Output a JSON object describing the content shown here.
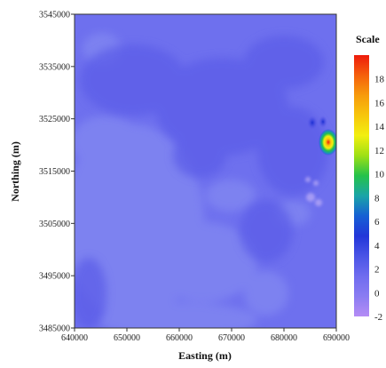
{
  "chart_data": {
    "type": "heatmap",
    "xlabel": "Easting (m)",
    "ylabel": "Northing (m)",
    "xlim": [
      640000,
      690000
    ],
    "ylim": [
      3485000,
      3545000
    ],
    "x_ticks": [
      640000,
      650000,
      660000,
      670000,
      680000,
      690000
    ],
    "y_ticks": [
      3485000,
      3495000,
      3505000,
      3515000,
      3525000,
      3535000,
      3545000
    ],
    "x_tick_labels": [
      "640000",
      "650000",
      "660000",
      "670000",
      "680000",
      "690000"
    ],
    "y_tick_labels": [
      "3485000",
      "3495000",
      "3505000",
      "3515000",
      "3525000",
      "3535000",
      "3545000"
    ],
    "colorbar": {
      "title": "Scale",
      "min": -2,
      "max": 20,
      "ticks": [
        -2,
        0,
        2,
        4,
        6,
        8,
        10,
        12,
        14,
        16,
        18
      ],
      "tick_labels": [
        "-2",
        "0",
        "2",
        "4",
        "6",
        "8",
        "10",
        "12",
        "14",
        "16",
        "18"
      ],
      "colors": [
        "#b58cf5",
        "#8a7cf2",
        "#6f6cef",
        "#4a54e6",
        "#2236d9",
        "#1660d4",
        "#1aa4a8",
        "#25c24a",
        "#9ee014",
        "#f2ef0f",
        "#f7c60c",
        "#f79b0c",
        "#f5600c",
        "#ee1b0b"
      ]
    },
    "background_level": 0.4,
    "features": [
      {
        "kind": "anomaly-peak",
        "x": 688500,
        "y": 3520500,
        "value": 11
      },
      {
        "kind": "anomaly-minor",
        "x": 686600,
        "y": 3523800,
        "value": 3.5
      },
      {
        "kind": "anomaly-minor",
        "x": 687700,
        "y": 3524000,
        "value": 3.5
      }
    ]
  }
}
